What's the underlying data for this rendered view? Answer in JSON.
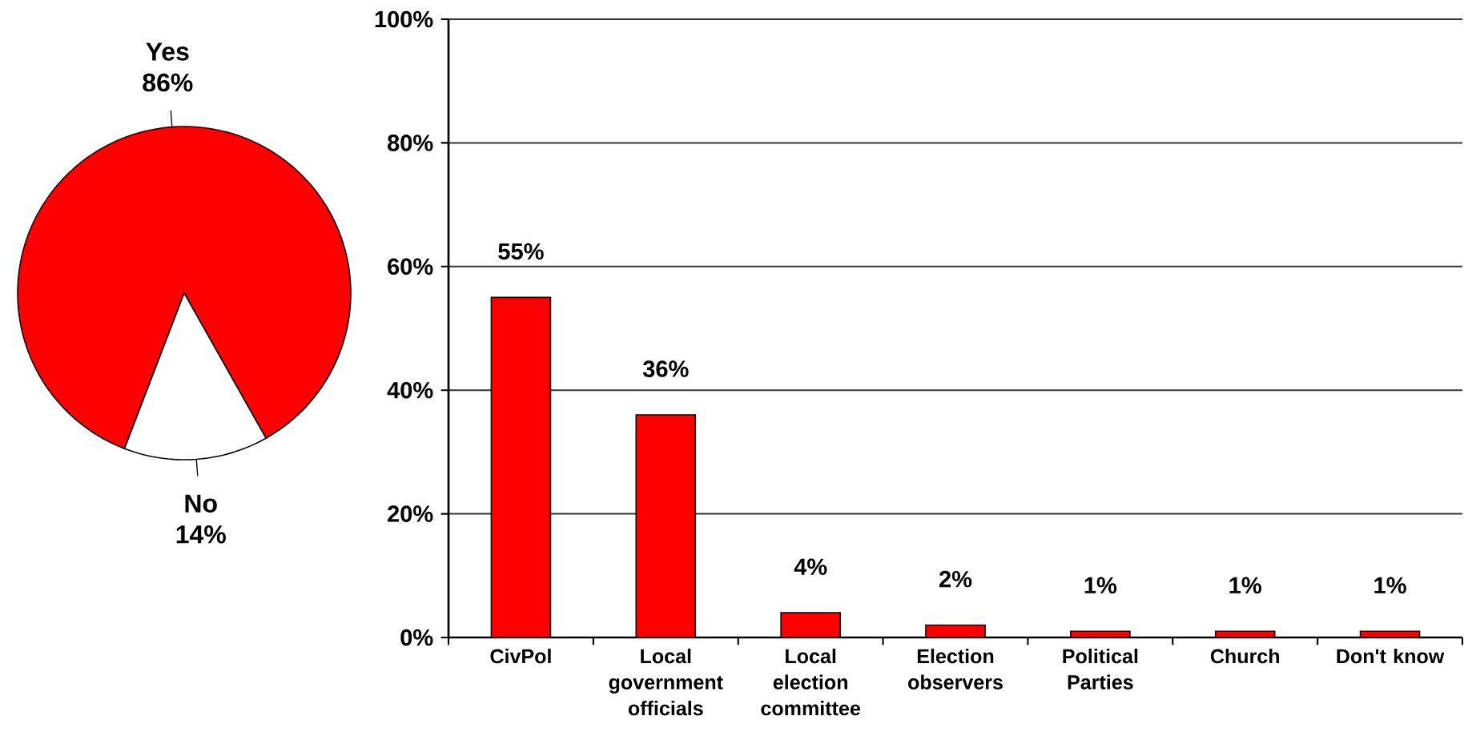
{
  "chart_data": [
    {
      "type": "pie",
      "categories": [
        "Yes",
        "No"
      ],
      "values": [
        86,
        14
      ],
      "colors": [
        "#ff0000",
        "#ffffff"
      ],
      "value_labels": [
        "86%",
        "14%"
      ]
    },
    {
      "type": "bar",
      "categories": [
        "CivPol",
        "Local government officials",
        "Local election committee",
        "Election observers",
        "Political Parties",
        "Church",
        "Don't know"
      ],
      "values": [
        55,
        36,
        4,
        2,
        1,
        1,
        1
      ],
      "color": "#ff0000",
      "value_labels": [
        "55%",
        "36%",
        "4%",
        "2%",
        "1%",
        "1%",
        "1%"
      ],
      "ylim": [
        0,
        100
      ],
      "yticks": [
        {
          "value": 0,
          "label": "0%"
        },
        {
          "value": 20,
          "label": "20%"
        },
        {
          "value": 40,
          "label": "40%"
        },
        {
          "value": 60,
          "label": "60%"
        },
        {
          "value": 80,
          "label": "80%"
        },
        {
          "value": 100,
          "label": "100%"
        }
      ],
      "grid": "y"
    }
  ]
}
